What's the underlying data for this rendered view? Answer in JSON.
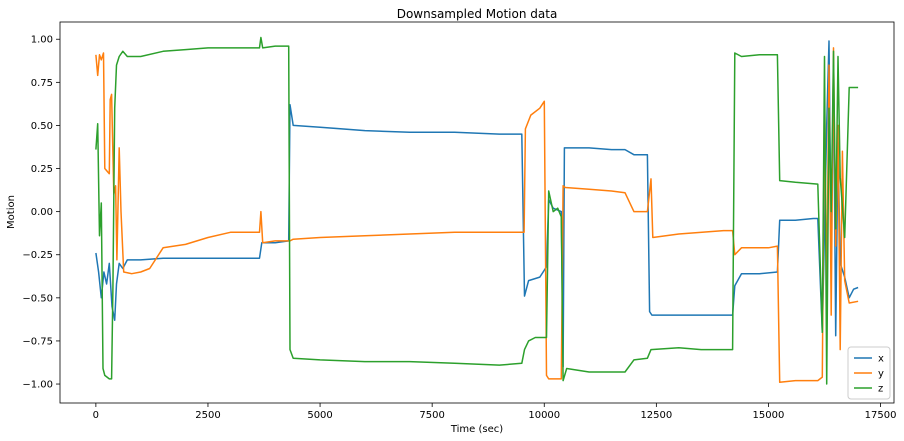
{
  "chart_data": {
    "type": "line",
    "title": "Downsampled Motion data",
    "xlabel": "Time (sec)",
    "ylabel": "Motion",
    "xlim": [
      -800,
      17800
    ],
    "ylim": [
      -1.11,
      1.1
    ],
    "xticks": [
      0,
      2500,
      5000,
      7500,
      10000,
      12500,
      15000,
      17500
    ],
    "xtick_labels": [
      "0",
      "2500",
      "5000",
      "7500",
      "10000",
      "12500",
      "15000",
      "17500"
    ],
    "yticks": [
      1.0,
      0.75,
      0.5,
      0.25,
      0.0,
      -0.25,
      -0.5,
      -0.75,
      -1.0
    ],
    "ytick_labels": [
      "1.00",
      "0.75",
      "0.50",
      "0.25",
      "0.00",
      "−0.25",
      "−0.50",
      "−0.75",
      "−1.00"
    ],
    "grid": false,
    "legend_position": "bottom-right",
    "series": [
      {
        "name": "x",
        "color": "#1f77b4",
        "points": [
          [
            0,
            -0.24
          ],
          [
            60,
            -0.35
          ],
          [
            120,
            -0.5
          ],
          [
            180,
            -0.35
          ],
          [
            240,
            -0.42
          ],
          [
            300,
            -0.3
          ],
          [
            360,
            -0.55
          ],
          [
            420,
            -0.63
          ],
          [
            460,
            -0.42
          ],
          [
            520,
            -0.3
          ],
          [
            600,
            -0.33
          ],
          [
            700,
            -0.28
          ],
          [
            1000,
            -0.28
          ],
          [
            1500,
            -0.27
          ],
          [
            2000,
            -0.27
          ],
          [
            2500,
            -0.27
          ],
          [
            3000,
            -0.27
          ],
          [
            3650,
            -0.27
          ],
          [
            3700,
            -0.18
          ],
          [
            4000,
            -0.18
          ],
          [
            4300,
            -0.17
          ],
          [
            4330,
            0.62
          ],
          [
            4400,
            0.5
          ],
          [
            5000,
            0.49
          ],
          [
            6000,
            0.47
          ],
          [
            7000,
            0.46
          ],
          [
            8000,
            0.46
          ],
          [
            9000,
            0.45
          ],
          [
            9500,
            0.45
          ],
          [
            9560,
            -0.49
          ],
          [
            9650,
            -0.4
          ],
          [
            9900,
            -0.38
          ],
          [
            10050,
            -0.32
          ],
          [
            10100,
            0.07
          ],
          [
            10200,
            0.02
          ],
          [
            10380,
            0.0
          ],
          [
            10420,
            -0.9
          ],
          [
            10450,
            0.37
          ],
          [
            11000,
            0.37
          ],
          [
            11500,
            0.36
          ],
          [
            11800,
            0.36
          ],
          [
            12000,
            0.33
          ],
          [
            12300,
            0.33
          ],
          [
            12350,
            -0.58
          ],
          [
            12400,
            -0.6
          ],
          [
            13000,
            -0.6
          ],
          [
            13500,
            -0.6
          ],
          [
            14000,
            -0.6
          ],
          [
            14200,
            -0.6
          ],
          [
            14250,
            -0.43
          ],
          [
            14400,
            -0.36
          ],
          [
            14800,
            -0.36
          ],
          [
            15200,
            -0.35
          ],
          [
            15250,
            -0.05
          ],
          [
            15600,
            -0.05
          ],
          [
            16000,
            -0.04
          ],
          [
            16100,
            -0.04
          ],
          [
            16200,
            -0.7
          ],
          [
            16300,
            0.5
          ],
          [
            16350,
            0.99
          ],
          [
            16400,
            -0.2
          ],
          [
            16450,
            0.85
          ],
          [
            16500,
            -0.72
          ],
          [
            16550,
            0.4
          ],
          [
            16600,
            -0.3
          ],
          [
            16700,
            -0.38
          ],
          [
            16800,
            -0.5
          ],
          [
            16900,
            -0.45
          ],
          [
            17000,
            -0.44
          ]
        ]
      },
      {
        "name": "y",
        "color": "#ff7f0e",
        "points": [
          [
            0,
            0.91
          ],
          [
            40,
            0.79
          ],
          [
            80,
            0.91
          ],
          [
            120,
            0.88
          ],
          [
            170,
            0.92
          ],
          [
            200,
            0.25
          ],
          [
            300,
            0.22
          ],
          [
            320,
            0.65
          ],
          [
            350,
            0.68
          ],
          [
            400,
            0.1
          ],
          [
            440,
            0.15
          ],
          [
            470,
            -0.28
          ],
          [
            520,
            0.37
          ],
          [
            560,
            0.0
          ],
          [
            620,
            -0.35
          ],
          [
            800,
            -0.36
          ],
          [
            1000,
            -0.35
          ],
          [
            1200,
            -0.33
          ],
          [
            1500,
            -0.21
          ],
          [
            2000,
            -0.19
          ],
          [
            2500,
            -0.15
          ],
          [
            3000,
            -0.12
          ],
          [
            3500,
            -0.12
          ],
          [
            3650,
            -0.12
          ],
          [
            3680,
            0.0
          ],
          [
            3720,
            -0.18
          ],
          [
            4000,
            -0.17
          ],
          [
            4330,
            -0.17
          ],
          [
            4400,
            -0.16
          ],
          [
            5000,
            -0.15
          ],
          [
            6000,
            -0.14
          ],
          [
            7000,
            -0.13
          ],
          [
            8000,
            -0.12
          ],
          [
            9000,
            -0.12
          ],
          [
            9550,
            -0.12
          ],
          [
            9580,
            0.48
          ],
          [
            9700,
            0.56
          ],
          [
            9900,
            0.6
          ],
          [
            10000,
            0.64
          ],
          [
            10050,
            -0.95
          ],
          [
            10100,
            -0.97
          ],
          [
            10380,
            -0.97
          ],
          [
            10420,
            0.15
          ],
          [
            10470,
            0.14
          ],
          [
            11000,
            0.13
          ],
          [
            11500,
            0.12
          ],
          [
            11800,
            0.11
          ],
          [
            12000,
            0.0
          ],
          [
            12300,
            0.0
          ],
          [
            12380,
            0.19
          ],
          [
            12420,
            -0.15
          ],
          [
            13000,
            -0.13
          ],
          [
            14000,
            -0.11
          ],
          [
            14200,
            -0.11
          ],
          [
            14250,
            -0.25
          ],
          [
            14400,
            -0.21
          ],
          [
            15000,
            -0.21
          ],
          [
            15200,
            -0.2
          ],
          [
            15250,
            -0.99
          ],
          [
            15600,
            -0.98
          ],
          [
            16100,
            -0.98
          ],
          [
            16200,
            -0.96
          ],
          [
            16250,
            0.72
          ],
          [
            16300,
            -0.5
          ],
          [
            16350,
            0.85
          ],
          [
            16400,
            -0.6
          ],
          [
            16450,
            0.95
          ],
          [
            16500,
            -0.2
          ],
          [
            16550,
            0.5
          ],
          [
            16600,
            -0.8
          ],
          [
            16650,
            0.35
          ],
          [
            16700,
            -0.4
          ],
          [
            16800,
            -0.53
          ],
          [
            17000,
            -0.52
          ]
        ]
      },
      {
        "name": "z",
        "color": "#2ca02c",
        "points": [
          [
            0,
            0.36
          ],
          [
            40,
            0.51
          ],
          [
            80,
            -0.14
          ],
          [
            120,
            0.05
          ],
          [
            160,
            -0.91
          ],
          [
            200,
            -0.95
          ],
          [
            300,
            -0.97
          ],
          [
            350,
            -0.97
          ],
          [
            380,
            -0.45
          ],
          [
            420,
            0.6
          ],
          [
            460,
            0.85
          ],
          [
            520,
            0.9
          ],
          [
            600,
            0.93
          ],
          [
            700,
            0.9
          ],
          [
            1000,
            0.9
          ],
          [
            1500,
            0.93
          ],
          [
            2000,
            0.94
          ],
          [
            2500,
            0.95
          ],
          [
            3000,
            0.95
          ],
          [
            3650,
            0.95
          ],
          [
            3680,
            1.01
          ],
          [
            3720,
            0.95
          ],
          [
            4000,
            0.96
          ],
          [
            4300,
            0.96
          ],
          [
            4330,
            -0.8
          ],
          [
            4400,
            -0.85
          ],
          [
            5000,
            -0.86
          ],
          [
            6000,
            -0.87
          ],
          [
            7000,
            -0.87
          ],
          [
            8000,
            -0.88
          ],
          [
            9000,
            -0.89
          ],
          [
            9500,
            -0.88
          ],
          [
            9560,
            -0.8
          ],
          [
            9650,
            -0.75
          ],
          [
            9800,
            -0.73
          ],
          [
            10050,
            -0.73
          ],
          [
            10100,
            0.12
          ],
          [
            10200,
            0.0
          ],
          [
            10300,
            0.02
          ],
          [
            10380,
            -0.03
          ],
          [
            10420,
            -0.98
          ],
          [
            10500,
            -0.91
          ],
          [
            11000,
            -0.93
          ],
          [
            11500,
            -0.93
          ],
          [
            11800,
            -0.93
          ],
          [
            12000,
            -0.86
          ],
          [
            12300,
            -0.85
          ],
          [
            12380,
            -0.8
          ],
          [
            13000,
            -0.79
          ],
          [
            13500,
            -0.8
          ],
          [
            14000,
            -0.8
          ],
          [
            14200,
            -0.8
          ],
          [
            14250,
            0.92
          ],
          [
            14400,
            0.9
          ],
          [
            14800,
            0.91
          ],
          [
            15200,
            0.91
          ],
          [
            15250,
            0.18
          ],
          [
            15600,
            0.17
          ],
          [
            16100,
            0.16
          ],
          [
            16200,
            -0.7
          ],
          [
            16250,
            0.9
          ],
          [
            16300,
            -1.0
          ],
          [
            16350,
            0.6
          ],
          [
            16400,
            0.0
          ],
          [
            16450,
            0.93
          ],
          [
            16500,
            -0.1
          ],
          [
            16550,
            0.9
          ],
          [
            16600,
            0.2
          ],
          [
            16700,
            -0.15
          ],
          [
            16800,
            0.72
          ],
          [
            17000,
            0.72
          ]
        ]
      }
    ]
  }
}
